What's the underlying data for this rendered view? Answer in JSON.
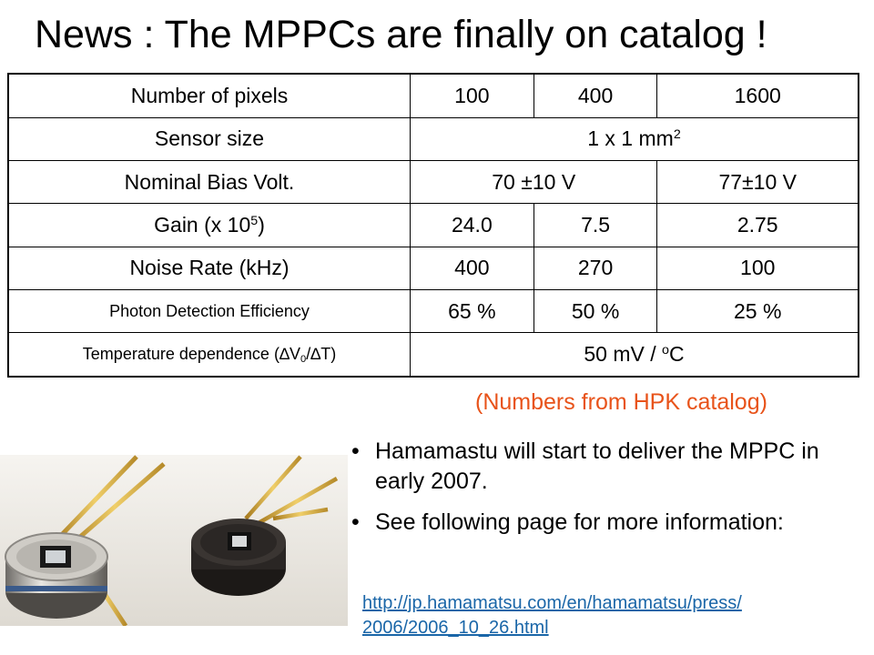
{
  "title": "News : The MPPCs are finally on catalog !",
  "table": {
    "pixels": {
      "label": "Number of pixels",
      "v1": "100",
      "v2": "400",
      "v3": "1600"
    },
    "sensor": {
      "label": "Sensor size",
      "value": "1 x 1 mm",
      "sup": "2"
    },
    "bias": {
      "label": "Nominal Bias Volt.",
      "v12": "70 ±10 V",
      "v3": "77±10 V"
    },
    "gain": {
      "label_pre": "Gain (x 10",
      "label_sup": "5",
      "label_post": ")",
      "v1": "24.0",
      "v2": "7.5",
      "v3": "2.75"
    },
    "noise": {
      "label": "Noise Rate (kHz)",
      "v1": "400",
      "v2": "270",
      "v3": "100"
    },
    "pde": {
      "label": "Photon Detection Efficiency",
      "v1": "65 %",
      "v2": "50 %",
      "v3": "25 %"
    },
    "temp": {
      "label_pre": "Temperature dependence (∆V",
      "label_sub": "0",
      "label_post": "/∆T)",
      "value_pre": "50 mV / ",
      "value_sup": "o",
      "value_post": "C"
    }
  },
  "note": "(Numbers from HPK catalog)",
  "bullets": [
    "Hamamastu will start to deliver the MPPC in early 2007.",
    "See following page for more information:"
  ],
  "bullet_glyph": "•",
  "link": "http://jp.hamamatsu.com/en/hamamatsu/press/2006/2006_10_26.html"
}
